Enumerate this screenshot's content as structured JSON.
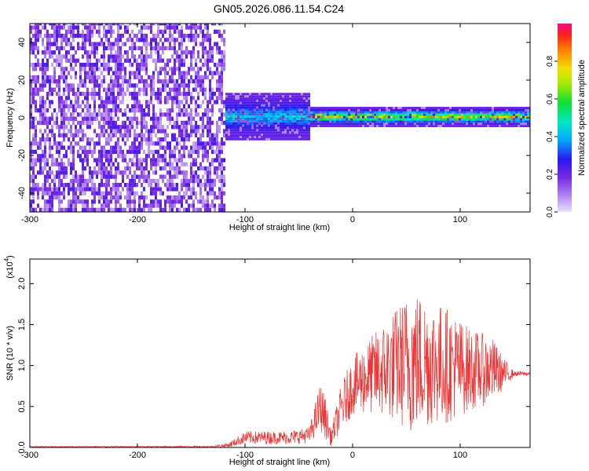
{
  "figure": {
    "title": "GN05.2026.086.11.54.C24"
  },
  "chart_data": [
    {
      "type": "heatmap",
      "title": "GN05.2026.086.11.54.C24",
      "xlabel": "Height of straight line (km)",
      "ylabel": "Frequency (Hz)",
      "xlim": [
        -300,
        165
      ],
      "ylim": [
        -50,
        50
      ],
      "xticks": [
        -300,
        -200,
        -100,
        0,
        100
      ],
      "yticks": [
        -40,
        -20,
        0,
        20,
        40
      ],
      "colorbar": {
        "label": "Normalized spectral amplitude",
        "range": [
          0,
          1
        ],
        "ticks": [
          0.0,
          0.2,
          0.4,
          0.6,
          0.8
        ],
        "tick_labels": [
          "0.0",
          "0.2",
          "0.4",
          "0.6",
          "0.8"
        ]
      },
      "regions": [
        {
          "x_range": [
            -300,
            -120
          ],
          "freq_range": [
            -50,
            50
          ],
          "amplitude": [
            0.05,
            0.25
          ],
          "description": "noise"
        },
        {
          "x_range": [
            -120,
            -40
          ],
          "freq_range": [
            -12,
            12
          ],
          "amplitude": [
            0.2,
            0.5
          ]
        },
        {
          "x_range": [
            -40,
            165
          ],
          "freq_range": [
            -5,
            5
          ],
          "amplitude": [
            0.2,
            0.95
          ],
          "peak_freq": 0
        }
      ]
    },
    {
      "type": "line",
      "xlabel": "Height of straight line (km)",
      "ylabel": "SNR (10 * v/v)",
      "y_multiplier_label": "(x10",
      "y_multiplier_exp": "4",
      "y_multiplier_close": ")",
      "xlim": [
        -300,
        165
      ],
      "ylim": [
        0,
        2.3
      ],
      "xticks": [
        -300,
        -200,
        -100,
        0,
        100
      ],
      "yticks": [
        0.0,
        0.5,
        1.0,
        1.5,
        2.0
      ],
      "ytick_labels": [
        "0.0",
        "0.5",
        "1.0",
        "1.5",
        "2.0"
      ],
      "color": "#ee3333",
      "series": [
        {
          "name": "SNR",
          "x": [
            -300,
            -200,
            -130,
            -115,
            -100,
            -80,
            -60,
            -40,
            -30,
            -25,
            -20,
            -10,
            0,
            20,
            40,
            55,
            70,
            90,
            110,
            130,
            140,
            150,
            165
          ],
          "y": [
            0.01,
            0.01,
            0.01,
            0.03,
            0.12,
            0.12,
            0.12,
            0.15,
            0.5,
            0.35,
            0.12,
            0.5,
            0.75,
            0.9,
            1.0,
            1.05,
            1.05,
            1.0,
            0.95,
            0.95,
            0.9,
            0.9,
            0.9
          ],
          "spread": [
            0.005,
            0.005,
            0.01,
            0.03,
            0.08,
            0.08,
            0.08,
            0.1,
            0.3,
            0.25,
            0.1,
            0.3,
            0.35,
            0.5,
            0.7,
            0.9,
            0.8,
            0.7,
            0.5,
            0.4,
            0.2,
            0.03,
            0.03
          ]
        }
      ]
    }
  ]
}
